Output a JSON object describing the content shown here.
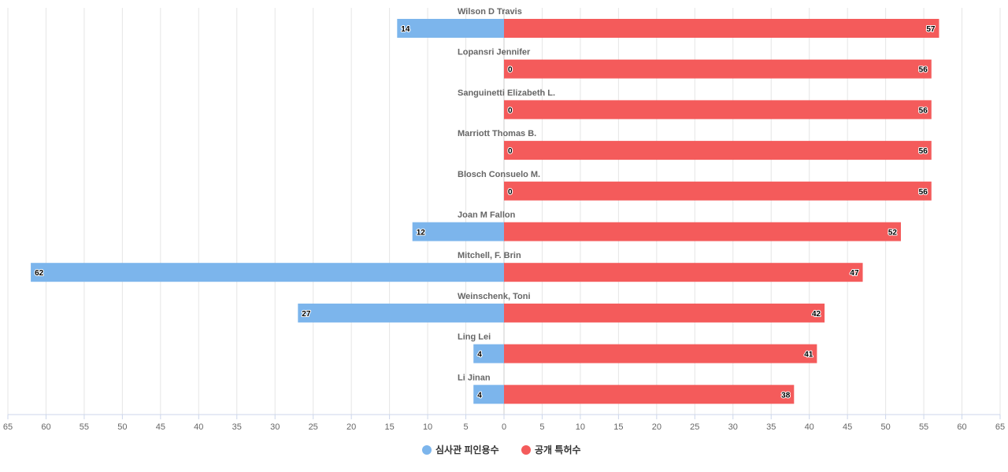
{
  "chart_data": {
    "type": "bar",
    "orientation": "horizontal-diverging",
    "categories": [
      "Wilson D Travis",
      "Lopansri Jennifer",
      "Sanguinetti Elizabeth L.",
      "Marriott Thomas B.",
      "Blosch Consuelo M.",
      "Joan M Fallon",
      "Mitchell, F. Brin",
      "Weinschenk, Toni",
      "Ling Lei",
      "Li Jinan"
    ],
    "series": [
      {
        "name": "심사관 피인용수",
        "color": "#7cb5ec",
        "side": "left",
        "values": [
          14,
          0,
          0,
          0,
          0,
          12,
          62,
          27,
          4,
          4
        ]
      },
      {
        "name": "공개 특허수",
        "color": "#f45b5b",
        "side": "right",
        "values": [
          57,
          56,
          56,
          56,
          56,
          52,
          47,
          42,
          41,
          38
        ]
      }
    ],
    "xlim": [
      -65,
      65
    ],
    "x_ticks": [
      "65",
      "60",
      "55",
      "50",
      "45",
      "40",
      "35",
      "30",
      "25",
      "20",
      "15",
      "10",
      "5",
      "0",
      "5",
      "10",
      "15",
      "20",
      "25",
      "30",
      "35",
      "40",
      "45",
      "50",
      "55",
      "60",
      "65"
    ],
    "x_tick_values": [
      -65,
      -60,
      -55,
      -50,
      -45,
      -40,
      -35,
      -30,
      -25,
      -20,
      -15,
      -10,
      -5,
      0,
      5,
      10,
      15,
      20,
      25,
      30,
      35,
      40,
      45,
      50,
      55,
      60,
      65
    ],
    "grid": true,
    "legend_position": "bottom-center",
    "title": "",
    "xlabel": "",
    "ylabel": ""
  }
}
